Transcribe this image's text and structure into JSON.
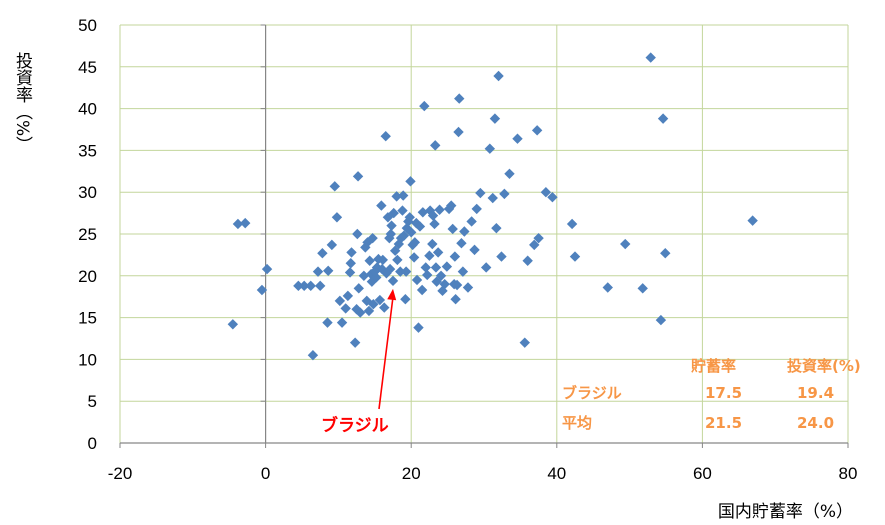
{
  "chart_data": {
    "type": "scatter",
    "xlabel": "国内貯蓄率（%）",
    "ylabel": "投資率（%）",
    "xlim": [
      -20,
      80
    ],
    "ylim": [
      0,
      50
    ],
    "xticks": [
      "-20",
      "0",
      "20",
      "40",
      "60",
      "80"
    ],
    "yticks": [
      "0",
      "5",
      "10",
      "15",
      "20",
      "25",
      "30",
      "35",
      "40",
      "45",
      "50"
    ],
    "grid": true,
    "marker_color": "#4f81bd",
    "gridline_color": "#c3d69b",
    "annotation": {
      "label": "ブラジル",
      "color": "#ff0000",
      "point": [
        17.5,
        19.4
      ]
    },
    "summary_table": {
      "color": "#f79646",
      "headers": [
        "貯蓄率",
        "投資率(%)"
      ],
      "rows": [
        {
          "label": "ブラジル",
          "values": [
            "17.5",
            "19.4"
          ]
        },
        {
          "label": "平均",
          "values": [
            "21.5",
            "24.0"
          ]
        }
      ]
    },
    "points": [
      [
        -4.5,
        14.2
      ],
      [
        -3.8,
        26.2
      ],
      [
        -2.8,
        26.3
      ],
      [
        -0.5,
        18.3
      ],
      [
        0.2,
        20.8
      ],
      [
        4.5,
        18.8
      ],
      [
        5.3,
        18.8
      ],
      [
        6.2,
        18.8
      ],
      [
        6.5,
        10.5
      ],
      [
        7.2,
        20.5
      ],
      [
        7.5,
        18.8
      ],
      [
        7.8,
        22.7
      ],
      [
        8.5,
        14.4
      ],
      [
        8.6,
        20.6
      ],
      [
        9.1,
        23.7
      ],
      [
        9.5,
        30.7
      ],
      [
        9.8,
        27.0
      ],
      [
        10.2,
        17.0
      ],
      [
        10.5,
        14.4
      ],
      [
        11.0,
        16.1
      ],
      [
        11.3,
        17.6
      ],
      [
        11.6,
        20.4
      ],
      [
        11.7,
        21.5
      ],
      [
        11.8,
        22.8
      ],
      [
        12.3,
        12.0
      ],
      [
        12.5,
        16.0
      ],
      [
        12.6,
        25.0
      ],
      [
        12.7,
        31.9
      ],
      [
        12.8,
        18.5
      ],
      [
        13.0,
        15.6
      ],
      [
        13.5,
        20.0
      ],
      [
        13.7,
        23.4
      ],
      [
        13.9,
        17.0
      ],
      [
        14.0,
        24.0
      ],
      [
        14.2,
        15.8
      ],
      [
        14.3,
        21.8
      ],
      [
        14.5,
        20.2
      ],
      [
        14.6,
        19.3
      ],
      [
        14.7,
        24.5
      ],
      [
        14.8,
        16.6
      ],
      [
        15.0,
        20.5
      ],
      [
        15.2,
        19.8
      ],
      [
        15.3,
        21.0
      ],
      [
        15.5,
        22.0
      ],
      [
        15.7,
        17.1
      ],
      [
        15.9,
        28.4
      ],
      [
        16.0,
        20.8
      ],
      [
        16.1,
        21.9
      ],
      [
        16.3,
        16.2
      ],
      [
        16.5,
        36.7
      ],
      [
        16.6,
        20.3
      ],
      [
        16.8,
        27.0
      ],
      [
        17.0,
        24.5
      ],
      [
        17.1,
        20.8
      ],
      [
        17.2,
        25.0
      ],
      [
        17.3,
        26.0
      ],
      [
        17.5,
        19.4
      ],
      [
        17.6,
        27.5
      ],
      [
        17.8,
        23.0
      ],
      [
        18.0,
        29.5
      ],
      [
        18.1,
        21.9
      ],
      [
        18.3,
        23.8
      ],
      [
        18.5,
        20.5
      ],
      [
        18.6,
        24.5
      ],
      [
        18.8,
        27.8
      ],
      [
        18.9,
        29.6
      ],
      [
        19.0,
        24.8
      ],
      [
        19.2,
        17.2
      ],
      [
        19.3,
        20.5
      ],
      [
        19.4,
        25.7
      ],
      [
        19.6,
        26.5
      ],
      [
        19.8,
        27.0
      ],
      [
        19.9,
        31.3
      ],
      [
        20.0,
        25.2
      ],
      [
        20.2,
        23.7
      ],
      [
        20.4,
        22.2
      ],
      [
        20.5,
        24.0
      ],
      [
        20.7,
        26.3
      ],
      [
        20.8,
        19.5
      ],
      [
        21.0,
        13.8
      ],
      [
        21.2,
        25.9
      ],
      [
        21.5,
        18.3
      ],
      [
        21.6,
        27.6
      ],
      [
        21.8,
        40.3
      ],
      [
        22.0,
        21.0
      ],
      [
        22.2,
        20.1
      ],
      [
        22.5,
        22.4
      ],
      [
        22.6,
        27.8
      ],
      [
        22.9,
        23.8
      ],
      [
        23.0,
        27.2
      ],
      [
        23.2,
        26.2
      ],
      [
        23.3,
        35.6
      ],
      [
        23.4,
        21.0
      ],
      [
        23.5,
        19.3
      ],
      [
        23.7,
        22.8
      ],
      [
        23.9,
        27.9
      ],
      [
        24.1,
        20.0
      ],
      [
        24.3,
        18.2
      ],
      [
        24.6,
        19.0
      ],
      [
        24.9,
        21.1
      ],
      [
        25.2,
        28.0
      ],
      [
        25.5,
        28.4
      ],
      [
        25.7,
        25.6
      ],
      [
        25.9,
        19.0
      ],
      [
        26.0,
        22.3
      ],
      [
        26.1,
        17.2
      ],
      [
        26.3,
        18.9
      ],
      [
        26.5,
        37.2
      ],
      [
        26.6,
        41.2
      ],
      [
        26.9,
        23.9
      ],
      [
        27.1,
        20.5
      ],
      [
        27.3,
        25.3
      ],
      [
        27.8,
        18.6
      ],
      [
        28.3,
        26.5
      ],
      [
        28.7,
        23.1
      ],
      [
        29.0,
        28.0
      ],
      [
        29.5,
        29.9
      ],
      [
        30.3,
        21.0
      ],
      [
        30.8,
        35.2
      ],
      [
        31.2,
        29.3
      ],
      [
        31.5,
        38.8
      ],
      [
        31.7,
        25.7
      ],
      [
        32.0,
        43.9
      ],
      [
        32.4,
        22.3
      ],
      [
        32.8,
        29.8
      ],
      [
        33.5,
        32.2
      ],
      [
        34.6,
        36.4
      ],
      [
        35.6,
        12.0
      ],
      [
        36.0,
        21.8
      ],
      [
        36.9,
        23.7
      ],
      [
        37.3,
        37.4
      ],
      [
        37.5,
        24.5
      ],
      [
        38.5,
        30.0
      ],
      [
        39.4,
        29.4
      ],
      [
        42.1,
        26.2
      ],
      [
        42.5,
        22.3
      ],
      [
        47.0,
        18.6
      ],
      [
        49.4,
        23.8
      ],
      [
        51.8,
        18.5
      ],
      [
        52.9,
        46.1
      ],
      [
        54.3,
        14.7
      ],
      [
        54.6,
        38.8
      ],
      [
        54.9,
        22.7
      ],
      [
        66.9,
        26.6
      ]
    ]
  }
}
